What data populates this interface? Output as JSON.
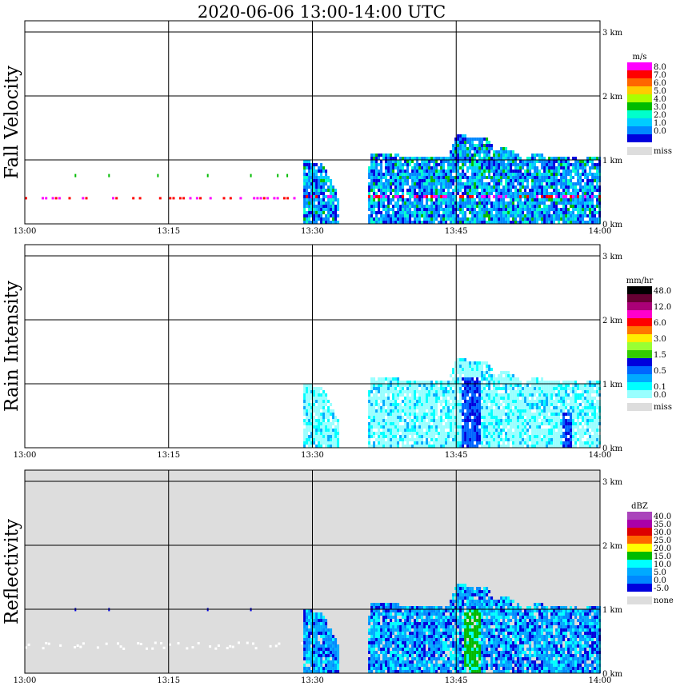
{
  "chart_data": {
    "type": "heatmap",
    "title": "2020-06-06   13:00-14:00 UTC",
    "x_ticks": [
      "13:00",
      "13:15",
      "13:30",
      "13:45",
      "14:00"
    ],
    "x_range_minutes": [
      0,
      60
    ],
    "height_ticks": [
      "0 km",
      "1 km",
      "2 km",
      "3 km"
    ],
    "y_range_km": [
      0,
      3.2
    ],
    "panels": [
      {
        "ylabel": "Fall Velocity",
        "unit": "m/s",
        "background": "#ffffff",
        "legend": [
          {
            "label": "8.0",
            "color": "#ff00ff"
          },
          {
            "label": "7.0",
            "color": "#ff0000"
          },
          {
            "label": "6.0",
            "color": "#ff6600"
          },
          {
            "label": "5.0",
            "color": "#ffcc00"
          },
          {
            "label": "4.0",
            "color": "#aaff00"
          },
          {
            "label": "3.0",
            "color": "#00bb00"
          },
          {
            "label": "2.0",
            "color": "#00ffcc"
          },
          {
            "label": "1.0",
            "color": "#00ccff"
          },
          {
            "label": "0.0",
            "color": "#0088ff"
          },
          {
            "label": "",
            "color": "#0000dd"
          }
        ],
        "missing_label": "miss"
      },
      {
        "ylabel": "Rain Intensity",
        "unit": "mm/hr",
        "background": "#ffffff",
        "legend": [
          {
            "label": "48.0",
            "color": "#000000"
          },
          {
            "label": "",
            "color": "#660033"
          },
          {
            "label": "12.0",
            "color": "#aa0077"
          },
          {
            "label": "",
            "color": "#ff00cc"
          },
          {
            "label": "6.0",
            "color": "#ff0000"
          },
          {
            "label": "",
            "color": "#ff7700"
          },
          {
            "label": "3.0",
            "color": "#ffee00"
          },
          {
            "label": "",
            "color": "#99ff33"
          },
          {
            "label": "1.5",
            "color": "#33cc00"
          },
          {
            "label": "",
            "color": "#0000dd"
          },
          {
            "label": "0.5",
            "color": "#0066ff"
          },
          {
            "label": "",
            "color": "#00aaff"
          },
          {
            "label": "0.1",
            "color": "#00ffff"
          },
          {
            "label": "0.0",
            "color": "#99ffff"
          }
        ],
        "missing_label": "miss"
      },
      {
        "ylabel": "Reflectivity",
        "unit": "dBZ",
        "background": "#dddddd",
        "legend": [
          {
            "label": "40.0",
            "color": "#aa44bb"
          },
          {
            "label": "35.0",
            "color": "#aa00aa"
          },
          {
            "label": "30.0",
            "color": "#dd0000"
          },
          {
            "label": "25.0",
            "color": "#ff6600"
          },
          {
            "label": "20.0",
            "color": "#ffff00"
          },
          {
            "label": "15.0",
            "color": "#00bb00"
          },
          {
            "label": "10.0",
            "color": "#00ffff"
          },
          {
            "label": "5.0",
            "color": "#00aaff"
          },
          {
            "label": "0.0",
            "color": "#0088ff"
          },
          {
            "label": "-5.0",
            "color": "#0000dd"
          }
        ],
        "missing_label": "none"
      }
    ]
  }
}
